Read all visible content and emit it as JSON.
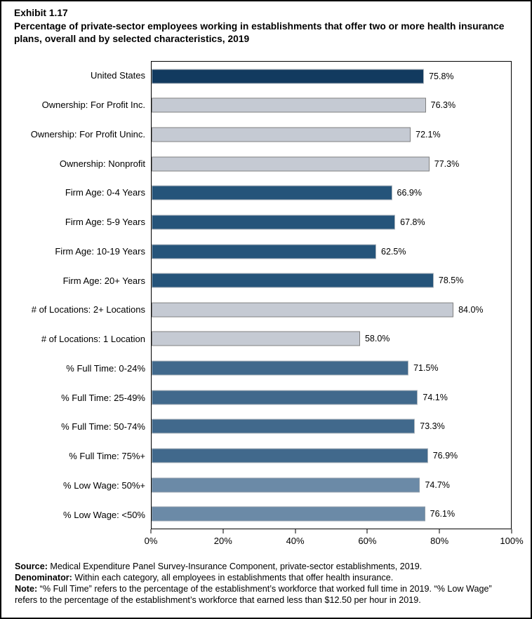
{
  "page": {
    "exhibit_label": "Exhibit 1.17",
    "title": "Percentage of private-sector employees working in establishments that offer two or more health insurance plans, overall and by selected characteristics, 2019"
  },
  "chart_data": {
    "type": "bar",
    "orientation": "horizontal",
    "title": "Percentage of private-sector employees working in establishments that offer two or more health insurance plans, overall and by selected characteristics, 2019",
    "xlabel": "",
    "ylabel": "",
    "xlim": [
      0,
      100
    ],
    "grid": false,
    "legend": "none",
    "x_tick_labels": [
      "0%",
      "20%",
      "40%",
      "60%",
      "80%",
      "100%"
    ],
    "x_tick_positions": [
      0,
      20,
      40,
      60,
      80,
      100
    ],
    "rows": [
      {
        "label": "United States",
        "value": 75.8,
        "display": "75.8%",
        "group": "united_states"
      },
      {
        "label": "Ownership: For Profit Inc.",
        "value": 76.3,
        "display": "76.3%",
        "group": "gray"
      },
      {
        "label": "Ownership: For Profit Uninc.",
        "value": 72.1,
        "display": "72.1%",
        "group": "gray"
      },
      {
        "label": "Ownership: Nonprofit",
        "value": 77.3,
        "display": "77.3%",
        "group": "gray"
      },
      {
        "label": "Firm Age: 0-4 Years",
        "value": 66.9,
        "display": "66.9%",
        "group": "firm_age"
      },
      {
        "label": "Firm Age: 5-9 Years",
        "value": 67.8,
        "display": "67.8%",
        "group": "firm_age"
      },
      {
        "label": "Firm Age: 10-19 Years",
        "value": 62.5,
        "display": "62.5%",
        "group": "firm_age"
      },
      {
        "label": "Firm Age: 20+ Years",
        "value": 78.5,
        "display": "78.5%",
        "group": "firm_age"
      },
      {
        "label": "# of Locations: 2+ Locations",
        "value": 84.0,
        "display": "84.0%",
        "group": "gray"
      },
      {
        "label": "# of Locations: 1 Location",
        "value": 58.0,
        "display": "58.0%",
        "group": "gray"
      },
      {
        "label": "% Full Time: 0-24%",
        "value": 71.5,
        "display": "71.5%",
        "group": "full_time"
      },
      {
        "label": "% Full Time: 25-49%",
        "value": 74.1,
        "display": "74.1%",
        "group": "full_time"
      },
      {
        "label": "% Full Time: 50-74%",
        "value": 73.3,
        "display": "73.3%",
        "group": "full_time"
      },
      {
        "label": "% Full Time: 75%+",
        "value": 76.9,
        "display": "76.9%",
        "group": "full_time"
      },
      {
        "label": "% Low Wage: 50%+",
        "value": 74.7,
        "display": "74.7%",
        "group": "low_wage"
      },
      {
        "label": "% Low Wage: <50%",
        "value": 76.1,
        "display": "76.1%",
        "group": "low_wage"
      }
    ],
    "palette": {
      "united_states": {
        "fill": "#123A5F",
        "border": "#AEB6BD"
      },
      "gray": {
        "fill": "#C5CAD3",
        "border": "#808080"
      },
      "firm_age": {
        "fill": "#25547A",
        "border": "#AEB6BD"
      },
      "full_time": {
        "fill": "#41698C",
        "border": "#AEB6BD"
      },
      "low_wage": {
        "fill": "#6B8AA7",
        "border": "#8C9BA8"
      }
    }
  },
  "footer": {
    "source_label": "Source:",
    "source_text": " Medical Expenditure Panel Survey-Insurance Component, private-sector establishments, 2019.",
    "denominator_label": "Denominator:",
    "denominator_text": " Within each category, all employees in establishments that offer health insurance.",
    "note_label": "Note:",
    "note_text": " “% Full Time” refers to the percentage of the establishment’s workforce that worked full time in 2019. “% Low Wage” refers to the percentage of the establishment’s workforce that earned less than $12.50 per hour in 2019."
  }
}
